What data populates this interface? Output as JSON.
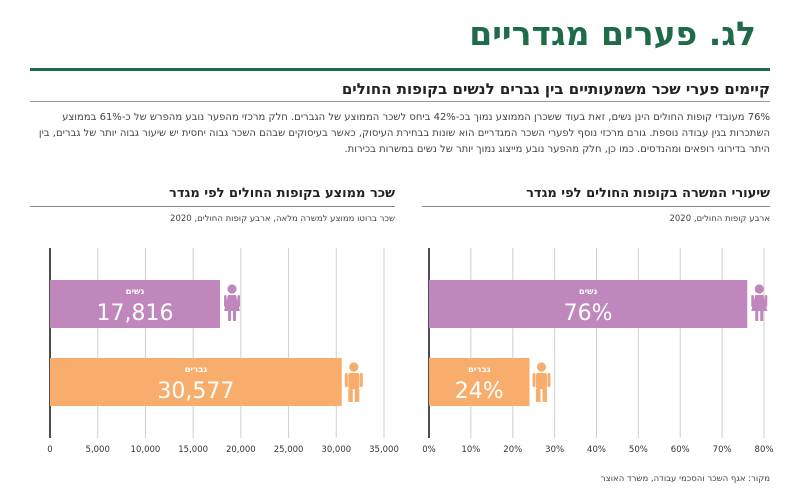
{
  "header": {
    "title": "לג. פערים מגדריים",
    "section_title": "קיימים פערי שכר משמעותיים בין גברים לנשים בקופות החולים",
    "intro": "76% מעובדי קופות החולים הינן נשים, זאת בעוד ששכרן הממוצע נמוך בכ-42% ביחס לשכר הממוצע של הגברים. חלק מרכזי מהפער נובע מהפרש של כ-61% בממוצע השתכרות בגין עבודה נוספת. גורם מרכזי נוסף לפערי השכר המגדריים הוא שונות בבחירת העיסוק, כאשר בעיסוקים שבהם השכר גבוה יחסית יש שיעור גבוה יותר של גברים, בין היתר בדירוגי רופאים ומהנדסים. כמו כן, חלק מהפער נובע מייצוג נמוך יותר של נשים במשרות בכירות."
  },
  "source": "מקור: אגף השכר והסכמי עבודה, משרד האוצר",
  "colors": {
    "women": "#c087bc",
    "men": "#f8ad6d",
    "accent": "#1e6b48",
    "grid": "#cfcfcf"
  },
  "icons": {
    "women": "woman-icon",
    "men": "man-icon"
  },
  "chart_data": [
    {
      "type": "bar",
      "orientation": "horizontal",
      "title": "שיעורי המשרה בקופות החולים לפי מגדר",
      "subtitle": "ארבע קופות החולים, 2020",
      "categories": [
        "נשים",
        "גברים"
      ],
      "values": [
        76,
        24
      ],
      "value_labels": [
        "76%",
        "24%"
      ],
      "xlim": [
        0,
        80
      ],
      "xticks": [
        "0%",
        "10%",
        "20%",
        "30%",
        "40%",
        "50%",
        "60%",
        "70%",
        "80%"
      ],
      "grid": true
    },
    {
      "type": "bar",
      "orientation": "horizontal",
      "title": "שכר ממוצע בקופות החולים לפי מגדר",
      "subtitle": "שכר ברוטו ממוצע למשרה מלאה, ארבע קופות החולים, 2020",
      "categories": [
        "נשים",
        "גברים"
      ],
      "values": [
        17816,
        30577
      ],
      "value_labels": [
        "17,816",
        "30,577"
      ],
      "xlim": [
        0,
        35000
      ],
      "xticks": [
        "0",
        "5,000",
        "10,000",
        "15,000",
        "20,000",
        "25,000",
        "30,000",
        "35,000"
      ],
      "grid": true
    }
  ]
}
